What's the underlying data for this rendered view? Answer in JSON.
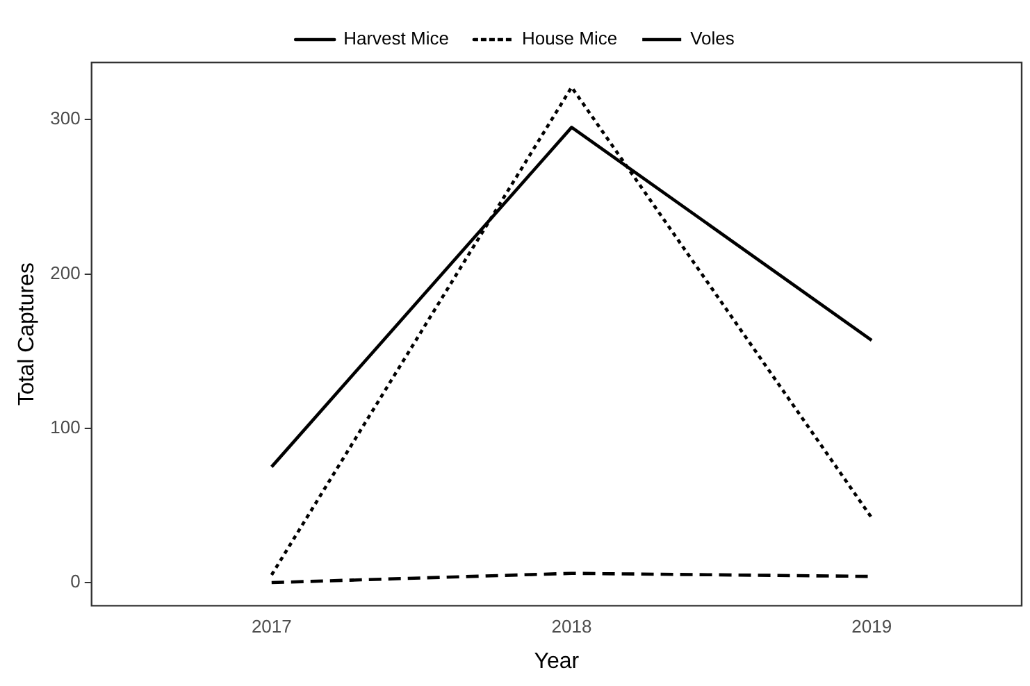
{
  "chart_data": {
    "type": "line",
    "xlabel": "Year",
    "ylabel": "Total Captures",
    "x": [
      2017,
      2018,
      2019
    ],
    "series": [
      {
        "name": "Harvest Mice",
        "color": "#000000",
        "line_style": "solid",
        "values": [
          75,
          295,
          157
        ]
      },
      {
        "name": "House Mice",
        "color": "#000000",
        "line_style": "dotted",
        "values": [
          5,
          321,
          42
        ]
      },
      {
        "name": "Voles",
        "color": "#000000",
        "line_style": "dashed",
        "values": [
          0,
          6,
          4
        ]
      }
    ],
    "xlim": [
      2016.4,
      2019.5
    ],
    "xticks": [
      2017,
      2018,
      2019
    ],
    "ylim": [
      -15,
      337
    ],
    "yticks": [
      0,
      100,
      200,
      300
    ],
    "grid": false,
    "legend": "top",
    "marker": "none"
  }
}
